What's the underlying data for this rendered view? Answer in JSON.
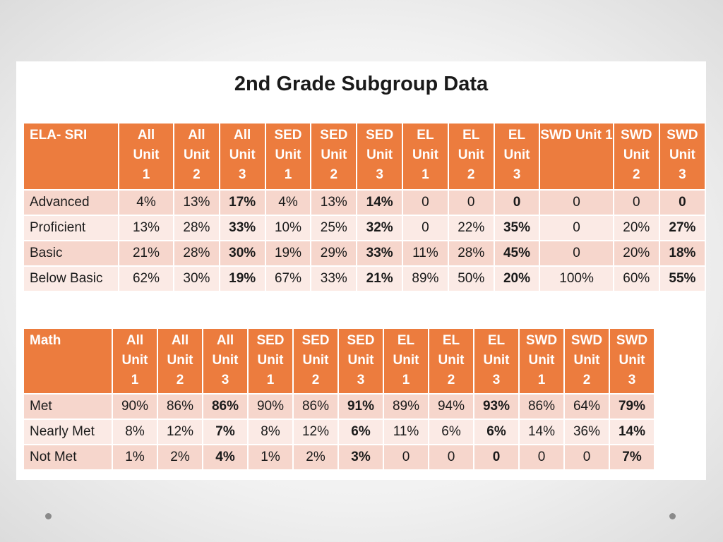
{
  "title": "2nd Grade Subgroup Data",
  "ela": {
    "headers": [
      "ELA- SRI",
      "All Unit 1",
      "All Unit 2",
      "All Unit 3",
      "SED Unit 1",
      "SED Unit 2",
      "SED Unit 3",
      "EL Unit 1",
      "EL Unit 2",
      "EL Unit 3",
      "SWD Unit 1",
      "SWD Unit 2",
      "SWD Unit 3"
    ],
    "rows": [
      {
        "label": "Advanced",
        "values": [
          "4%",
          "13%",
          "17%",
          "4%",
          "13%",
          "14%",
          "0",
          "0",
          "0",
          "0",
          "0",
          "0"
        ]
      },
      {
        "label": "Proficient",
        "values": [
          "13%",
          "28%",
          "33%",
          "10%",
          "25%",
          "32%",
          "0",
          "22%",
          "35%",
          "0",
          "20%",
          "27%"
        ]
      },
      {
        "label": "Basic",
        "values": [
          "21%",
          "28%",
          "30%",
          "19%",
          "29%",
          "33%",
          "11%",
          "28%",
          "45%",
          "0",
          "20%",
          "18%"
        ]
      },
      {
        "label": "Below Basic",
        "values": [
          "62%",
          "30%",
          "19%",
          "67%",
          "33%",
          "21%",
          "89%",
          "50%",
          "20%",
          "100%",
          "60%",
          "55%"
        ]
      }
    ]
  },
  "math": {
    "headers": [
      "Math",
      "All Unit 1",
      "All Unit 2",
      "All Unit 3",
      "SED Unit 1",
      "SED Unit 2",
      "SED Unit 3",
      "EL Unit 1",
      "EL Unit 2",
      "EL Unit 3",
      "SWD Unit 1",
      "SWD Unit 2",
      "SWD Unit 3"
    ],
    "rows": [
      {
        "label": "Met",
        "values": [
          "90%",
          "86%",
          "86%",
          "90%",
          "86%",
          "91%",
          "89%",
          "94%",
          "93%",
          "86%",
          "64%",
          "79%"
        ]
      },
      {
        "label": "Nearly Met",
        "values": [
          "8%",
          "12%",
          "7%",
          "8%",
          "12%",
          "6%",
          "11%",
          "6%",
          "6%",
          "14%",
          "36%",
          "14%"
        ]
      },
      {
        "label": "Not Met",
        "values": [
          "1%",
          "2%",
          "4%",
          "1%",
          "2%",
          "3%",
          "0",
          "0",
          "0",
          "0",
          "0",
          "7%"
        ]
      }
    ]
  },
  "colors": {
    "header_bg": "#ec7c3e",
    "row_dark": "#f6d6cc",
    "row_light": "#fbeae5"
  }
}
